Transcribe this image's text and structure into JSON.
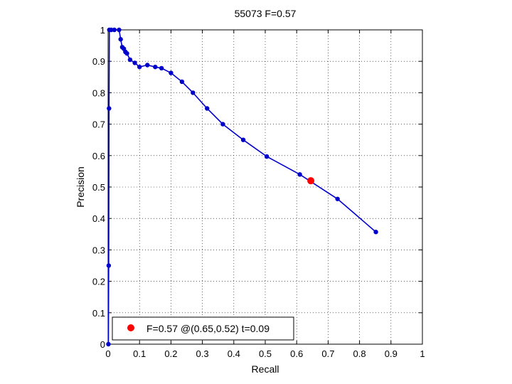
{
  "chart_data": {
    "type": "line",
    "title": "55073 F=0.57",
    "xlabel": "Recall",
    "ylabel": "Precision",
    "xlim": [
      0,
      1
    ],
    "ylim": [
      0,
      1
    ],
    "grid": true,
    "xticks": [
      0,
      0.1,
      0.2,
      0.3,
      0.4,
      0.5,
      0.6,
      0.7,
      0.8,
      0.9,
      1
    ],
    "yticks": [
      0,
      0.1,
      0.2,
      0.3,
      0.4,
      0.5,
      0.6,
      0.7,
      0.8,
      0.9,
      1
    ],
    "xtick_labels": [
      "0",
      "0.1",
      "0.2",
      "0.3",
      "0.4",
      "0.5",
      "0.6",
      "0.7",
      "0.8",
      "0.9",
      "1"
    ],
    "ytick_labels": [
      "0",
      "0.1",
      "0.2",
      "0.3",
      "0.4",
      "0.5",
      "0.6",
      "0.7",
      "0.8",
      "0.9",
      "1"
    ],
    "series": [
      {
        "color": "#0000cc",
        "points": [
          [
            0.001,
            0.0
          ],
          [
            0.002,
            0.25
          ],
          [
            0.003,
            0.75
          ],
          [
            0.004,
            1.0
          ],
          [
            0.01,
            1.0
          ],
          [
            0.02,
            1.0
          ],
          [
            0.035,
            1.0
          ],
          [
            0.04,
            0.97
          ],
          [
            0.045,
            0.945
          ],
          [
            0.05,
            0.94
          ],
          [
            0.055,
            0.93
          ],
          [
            0.06,
            0.925
          ],
          [
            0.07,
            0.905
          ],
          [
            0.085,
            0.895
          ],
          [
            0.1,
            0.882
          ],
          [
            0.125,
            0.888
          ],
          [
            0.15,
            0.882
          ],
          [
            0.17,
            0.878
          ],
          [
            0.2,
            0.863
          ],
          [
            0.235,
            0.835
          ],
          [
            0.27,
            0.8
          ],
          [
            0.315,
            0.75
          ],
          [
            0.365,
            0.7
          ],
          [
            0.43,
            0.65
          ],
          [
            0.505,
            0.597
          ],
          [
            0.61,
            0.54
          ],
          [
            0.73,
            0.462
          ],
          [
            0.852,
            0.357
          ]
        ]
      }
    ],
    "highlight_point": {
      "x": 0.645,
      "y": 0.52,
      "color": "#ff0000"
    },
    "legend": {
      "placement": "bottom-left",
      "label": "F=0.57 @(0.65,0.52) t=0.09",
      "marker_color": "#ff0000"
    }
  }
}
